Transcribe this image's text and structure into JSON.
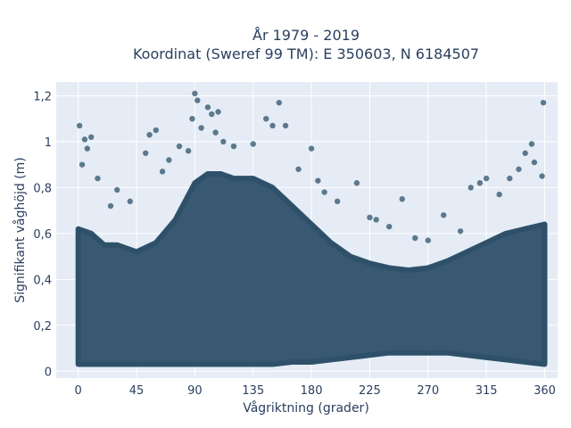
{
  "chart_data": {
    "type": "scatter",
    "title_line1": "År 1979 - 2019",
    "title_line2": "Koordinat (Sweref 99 TM): E 350603, N 6184507",
    "xlabel": "Vågriktning (grader)",
    "ylabel": "Signifikant våghöjd (m)",
    "xlim": [
      -17,
      370
    ],
    "ylim": [
      -0.03,
      1.26
    ],
    "xticks": [
      0,
      45,
      90,
      135,
      180,
      225,
      270,
      315,
      360
    ],
    "yticks": [
      0,
      0.2,
      0.4,
      0.6,
      0.8,
      1.0,
      1.2
    ],
    "xtick_labels": [
      "0",
      "45",
      "90",
      "135",
      "180",
      "225",
      "270",
      "315",
      "360"
    ],
    "ytick_labels": [
      "0",
      "0,2",
      "0,4",
      "0,6",
      "0,8",
      "1",
      "1,2"
    ],
    "grid": true,
    "colors": {
      "marker": "#2e5169",
      "plot_bg": "#e5ecf6",
      "grid": "#ffffff",
      "text": "#2a3f5f"
    },
    "dense_band": {
      "x": [
        0,
        10,
        20,
        30,
        45,
        60,
        75,
        90,
        100,
        110,
        120,
        135,
        150,
        165,
        180,
        195,
        210,
        225,
        240,
        255,
        270,
        285,
        300,
        315,
        330,
        345,
        360
      ],
      "lower": [
        0.03,
        0.03,
        0.03,
        0.03,
        0.03,
        0.03,
        0.03,
        0.03,
        0.03,
        0.03,
        0.03,
        0.03,
        0.03,
        0.04,
        0.04,
        0.05,
        0.06,
        0.07,
        0.08,
        0.08,
        0.08,
        0.08,
        0.07,
        0.06,
        0.05,
        0.04,
        0.03
      ],
      "upper": [
        0.62,
        0.6,
        0.55,
        0.55,
        0.52,
        0.56,
        0.66,
        0.82,
        0.86,
        0.86,
        0.84,
        0.84,
        0.8,
        0.72,
        0.64,
        0.56,
        0.5,
        0.47,
        0.45,
        0.44,
        0.45,
        0.48,
        0.52,
        0.56,
        0.6,
        0.62,
        0.64
      ]
    },
    "outliers": [
      {
        "x": 1,
        "y": 1.07
      },
      {
        "x": 5,
        "y": 1.01
      },
      {
        "x": 10,
        "y": 1.02
      },
      {
        "x": 3,
        "y": 0.9
      },
      {
        "x": 7,
        "y": 0.97
      },
      {
        "x": 15,
        "y": 0.84
      },
      {
        "x": 25,
        "y": 0.72
      },
      {
        "x": 30,
        "y": 0.79
      },
      {
        "x": 40,
        "y": 0.74
      },
      {
        "x": 52,
        "y": 0.95
      },
      {
        "x": 55,
        "y": 1.03
      },
      {
        "x": 60,
        "y": 1.05
      },
      {
        "x": 65,
        "y": 0.87
      },
      {
        "x": 70,
        "y": 0.92
      },
      {
        "x": 78,
        "y": 0.98
      },
      {
        "x": 85,
        "y": 0.96
      },
      {
        "x": 88,
        "y": 1.1
      },
      {
        "x": 90,
        "y": 1.21
      },
      {
        "x": 92,
        "y": 1.18
      },
      {
        "x": 95,
        "y": 1.06
      },
      {
        "x": 100,
        "y": 1.15
      },
      {
        "x": 103,
        "y": 1.12
      },
      {
        "x": 106,
        "y": 1.04
      },
      {
        "x": 108,
        "y": 1.13
      },
      {
        "x": 112,
        "y": 1.0
      },
      {
        "x": 120,
        "y": 0.98
      },
      {
        "x": 135,
        "y": 0.99
      },
      {
        "x": 145,
        "y": 1.1
      },
      {
        "x": 150,
        "y": 1.07
      },
      {
        "x": 155,
        "y": 1.17
      },
      {
        "x": 160,
        "y": 1.07
      },
      {
        "x": 170,
        "y": 0.88
      },
      {
        "x": 180,
        "y": 0.97
      },
      {
        "x": 185,
        "y": 0.83
      },
      {
        "x": 190,
        "y": 0.78
      },
      {
        "x": 200,
        "y": 0.74
      },
      {
        "x": 215,
        "y": 0.82
      },
      {
        "x": 225,
        "y": 0.67
      },
      {
        "x": 230,
        "y": 0.66
      },
      {
        "x": 240,
        "y": 0.63
      },
      {
        "x": 250,
        "y": 0.75
      },
      {
        "x": 260,
        "y": 0.58
      },
      {
        "x": 270,
        "y": 0.57
      },
      {
        "x": 282,
        "y": 0.68
      },
      {
        "x": 295,
        "y": 0.61
      },
      {
        "x": 303,
        "y": 0.8
      },
      {
        "x": 310,
        "y": 0.82
      },
      {
        "x": 315,
        "y": 0.84
      },
      {
        "x": 325,
        "y": 0.77
      },
      {
        "x": 333,
        "y": 0.84
      },
      {
        "x": 340,
        "y": 0.88
      },
      {
        "x": 345,
        "y": 0.95
      },
      {
        "x": 350,
        "y": 0.99
      },
      {
        "x": 352,
        "y": 0.91
      },
      {
        "x": 358,
        "y": 0.85
      },
      {
        "x": 359,
        "y": 1.17
      }
    ]
  }
}
